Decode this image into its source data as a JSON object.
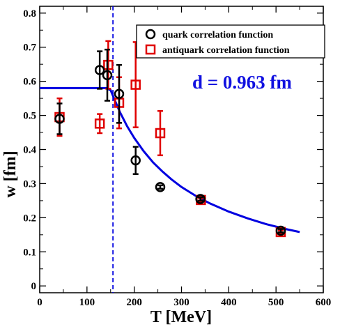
{
  "chart_data": {
    "type": "scatter",
    "xlabel": "T [MeV]",
    "ylabel": "w  [fm]",
    "xlim": [
      0,
      600
    ],
    "ylim": [
      -0.02,
      0.82
    ],
    "xticks": [
      0,
      100,
      200,
      300,
      400,
      500,
      600
    ],
    "yticks": [
      0,
      0.1,
      0.2,
      0.3,
      0.4,
      0.5,
      0.6,
      0.7,
      0.8
    ],
    "grid": false,
    "legend_position": "top-right",
    "annotation": "d = 0.963 fm",
    "vline_x": 155,
    "colors": {
      "quark": "#000000",
      "antiquark": "#e00000",
      "fit": "#0000e0",
      "annotation": "#1010e0"
    },
    "series": [
      {
        "name": "quark correlation function",
        "marker": "circle",
        "points": [
          {
            "x": 42,
            "y": 0.49,
            "err": 0.045
          },
          {
            "x": 127,
            "y": 0.633,
            "err": 0.055
          },
          {
            "x": 143,
            "y": 0.618,
            "err": 0.075
          },
          {
            "x": 168,
            "y": 0.563,
            "err": 0.085
          },
          {
            "x": 203,
            "y": 0.368,
            "err": 0.04
          },
          {
            "x": 255,
            "y": 0.29,
            "err": 0.005
          },
          {
            "x": 340,
            "y": 0.255,
            "err": 0.005
          },
          {
            "x": 510,
            "y": 0.162,
            "err": 0.005
          }
        ]
      },
      {
        "name": "antiquark correlation function",
        "marker": "square",
        "points": [
          {
            "x": 42,
            "y": 0.495,
            "err": 0.055
          },
          {
            "x": 127,
            "y": 0.476,
            "err": 0.028
          },
          {
            "x": 145,
            "y": 0.648,
            "err": 0.07
          },
          {
            "x": 168,
            "y": 0.537,
            "err": 0.075
          },
          {
            "x": 203,
            "y": 0.59,
            "err": 0.125
          },
          {
            "x": 255,
            "y": 0.448,
            "err": 0.065
          },
          {
            "x": 341,
            "y": 0.252,
            "err": 0.005
          },
          {
            "x": 510,
            "y": 0.158,
            "err": 0.005
          }
        ]
      },
      {
        "name": "",
        "style": "line",
        "x": [
          0,
          140,
          150,
          160,
          170,
          185,
          200,
          220,
          240,
          260,
          280,
          300,
          330,
          360,
          400,
          440,
          480,
          520,
          550
        ],
        "y": [
          0.58,
          0.58,
          0.574,
          0.541,
          0.509,
          0.468,
          0.434,
          0.395,
          0.362,
          0.335,
          0.311,
          0.29,
          0.264,
          0.242,
          0.218,
          0.198,
          0.181,
          0.167,
          0.158
        ]
      }
    ]
  }
}
